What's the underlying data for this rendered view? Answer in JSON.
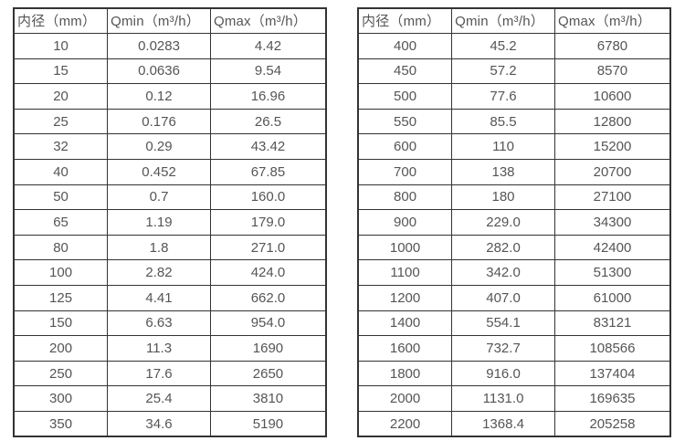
{
  "colors": {
    "border": "#333333",
    "text": "#555555",
    "background": "#ffffff"
  },
  "chart_data": [
    {
      "type": "table",
      "title": "",
      "columns": [
        "内径（mm）",
        "Qmin（m³/h）",
        "Qmax（m³/h）"
      ],
      "rows": [
        [
          "10",
          "0.0283",
          "4.42"
        ],
        [
          "15",
          "0.0636",
          "9.54"
        ],
        [
          "20",
          "0.12",
          "16.96"
        ],
        [
          "25",
          "0.176",
          "26.5"
        ],
        [
          "32",
          "0.29",
          "43.42"
        ],
        [
          "40",
          "0.452",
          "67.85"
        ],
        [
          "50",
          "0.7",
          "160.0"
        ],
        [
          "65",
          "1.19",
          "179.0"
        ],
        [
          "80",
          "1.8",
          "271.0"
        ],
        [
          "100",
          "2.82",
          "424.0"
        ],
        [
          "125",
          "4.41",
          "662.0"
        ],
        [
          "150",
          "6.63",
          "954.0"
        ],
        [
          "200",
          "11.3",
          "1690"
        ],
        [
          "250",
          "17.6",
          "2650"
        ],
        [
          "300",
          "25.4",
          "3810"
        ],
        [
          "350",
          "34.6",
          "5190"
        ]
      ]
    },
    {
      "type": "table",
      "title": "",
      "columns": [
        "内径（mm）",
        "Qmin（m³/h）",
        "Qmax（m³/h）"
      ],
      "rows": [
        [
          "400",
          "45.2",
          "6780"
        ],
        [
          "450",
          "57.2",
          "8570"
        ],
        [
          "500",
          "77.6",
          "10600"
        ],
        [
          "550",
          "85.5",
          "12800"
        ],
        [
          "600",
          "110",
          "15200"
        ],
        [
          "700",
          "138",
          "20700"
        ],
        [
          "800",
          "180",
          "27100"
        ],
        [
          "900",
          "229.0",
          "34300"
        ],
        [
          "1000",
          "282.0",
          "42400"
        ],
        [
          "1100",
          "342.0",
          "51300"
        ],
        [
          "1200",
          "407.0",
          "61000"
        ],
        [
          "1400",
          "554.1",
          "83121"
        ],
        [
          "1600",
          "732.7",
          "108566"
        ],
        [
          "1800",
          "916.0",
          "137404"
        ],
        [
          "2000",
          "1131.0",
          "169635"
        ],
        [
          "2200",
          "1368.4",
          "205258"
        ]
      ]
    }
  ]
}
